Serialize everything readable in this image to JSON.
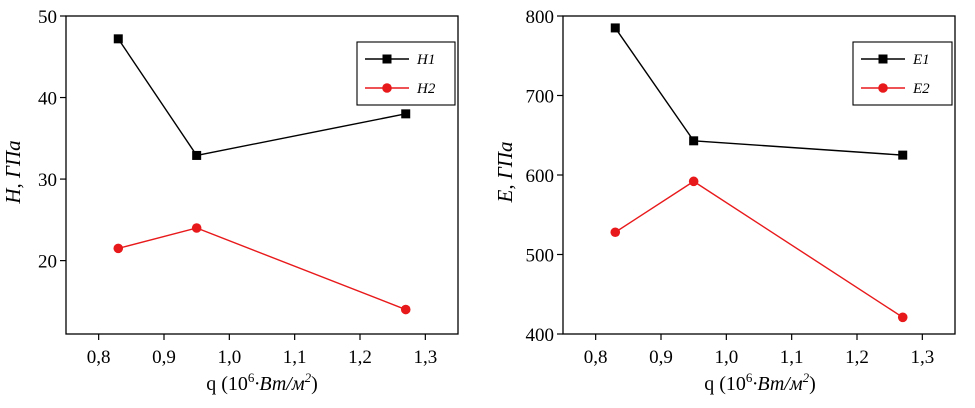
{
  "chart_data": [
    {
      "type": "line",
      "x": [
        0.83,
        0.95,
        1.27
      ],
      "xlim": [
        0.75,
        1.35
      ],
      "ylim": [
        11,
        50
      ],
      "xticks": [
        "0,8",
        "0,9",
        "1,0",
        "1,1",
        "1,2",
        "1,3"
      ],
      "yticks": [
        "20",
        "30",
        "40",
        "50"
      ],
      "xlabel": "q (10",
      "xlabel_exp": "6",
      "xlabel_unit": "·Вт/м",
      "xlabel_unit_exp": "2",
      "xlabel_close": ")",
      "ylabel": "H, ГПа",
      "grid": false,
      "legend_position": "top-right",
      "series": [
        {
          "name": "H1",
          "values": [
            47.2,
            32.9,
            38.0
          ],
          "color": "#000000",
          "marker": "square"
        },
        {
          "name": "H2",
          "values": [
            21.5,
            24.0,
            14.0
          ],
          "color": "#e8191b",
          "marker": "circle"
        }
      ]
    },
    {
      "type": "line",
      "x": [
        0.83,
        0.95,
        1.27
      ],
      "xlim": [
        0.75,
        1.35
      ],
      "ylim": [
        400,
        800
      ],
      "xticks": [
        "0,8",
        "0,9",
        "1,0",
        "1,1",
        "1,2",
        "1,3"
      ],
      "yticks": [
        "400",
        "500",
        "600",
        "700",
        "800"
      ],
      "xlabel": "q (10",
      "xlabel_exp": "6",
      "xlabel_unit": "·Вт/м",
      "xlabel_unit_exp": "2",
      "xlabel_close": ")",
      "ylabel": "E, ГПа",
      "grid": false,
      "legend_position": "top-right",
      "series": [
        {
          "name": "E1",
          "values": [
            785,
            643,
            625
          ],
          "color": "#000000",
          "marker": "square"
        },
        {
          "name": "E2",
          "values": [
            528,
            592,
            421
          ],
          "color": "#e8191b",
          "marker": "circle"
        }
      ]
    }
  ]
}
